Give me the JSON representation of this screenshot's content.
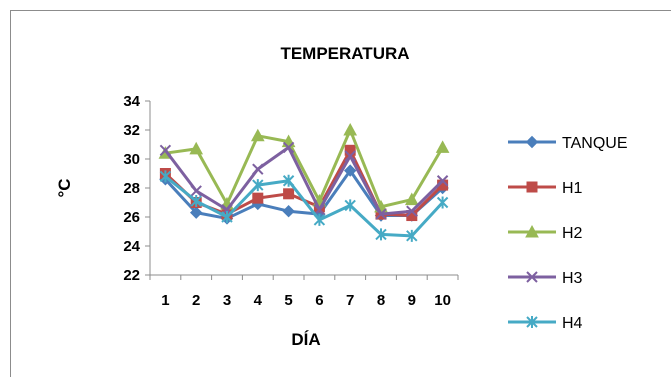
{
  "chart_data": {
    "type": "line",
    "title": "TEMPERATURA",
    "xlabel": "DÍA",
    "ylabel": "°C",
    "categories": [
      "1",
      "2",
      "3",
      "4",
      "5",
      "6",
      "7",
      "8",
      "9",
      "10"
    ],
    "ylim": [
      22,
      34
    ],
    "ytick_step": 2,
    "yticks": [
      "22",
      "24",
      "26",
      "28",
      "30",
      "32",
      "34"
    ],
    "grid": false,
    "legend_position": "right",
    "series": [
      {
        "name": "TANQUE",
        "color": "#4a7ebb",
        "marker": "diamond",
        "values": [
          28.6,
          26.3,
          25.9,
          26.9,
          26.4,
          26.2,
          29.2,
          26.1,
          26.1,
          28.0
        ]
      },
      {
        "name": "H1",
        "color": "#be4b48",
        "marker": "square",
        "values": [
          29.0,
          27.0,
          26.2,
          27.3,
          27.6,
          26.7,
          30.6,
          26.2,
          26.1,
          28.2
        ]
      },
      {
        "name": "H2",
        "color": "#98b954",
        "marker": "triangle",
        "values": [
          30.4,
          30.7,
          26.9,
          31.6,
          31.2,
          27.1,
          32.0,
          26.7,
          27.2,
          30.8
        ]
      },
      {
        "name": "H3",
        "color": "#7d60a0",
        "marker": "x",
        "values": [
          30.6,
          27.8,
          26.5,
          29.3,
          30.8,
          26.5,
          30.2,
          26.2,
          26.4,
          28.5
        ]
      },
      {
        "name": "H4",
        "color": "#46aac5",
        "marker": "star",
        "values": [
          28.8,
          27.1,
          26.0,
          28.2,
          28.5,
          25.8,
          26.8,
          24.8,
          24.7,
          27.0
        ]
      }
    ]
  }
}
